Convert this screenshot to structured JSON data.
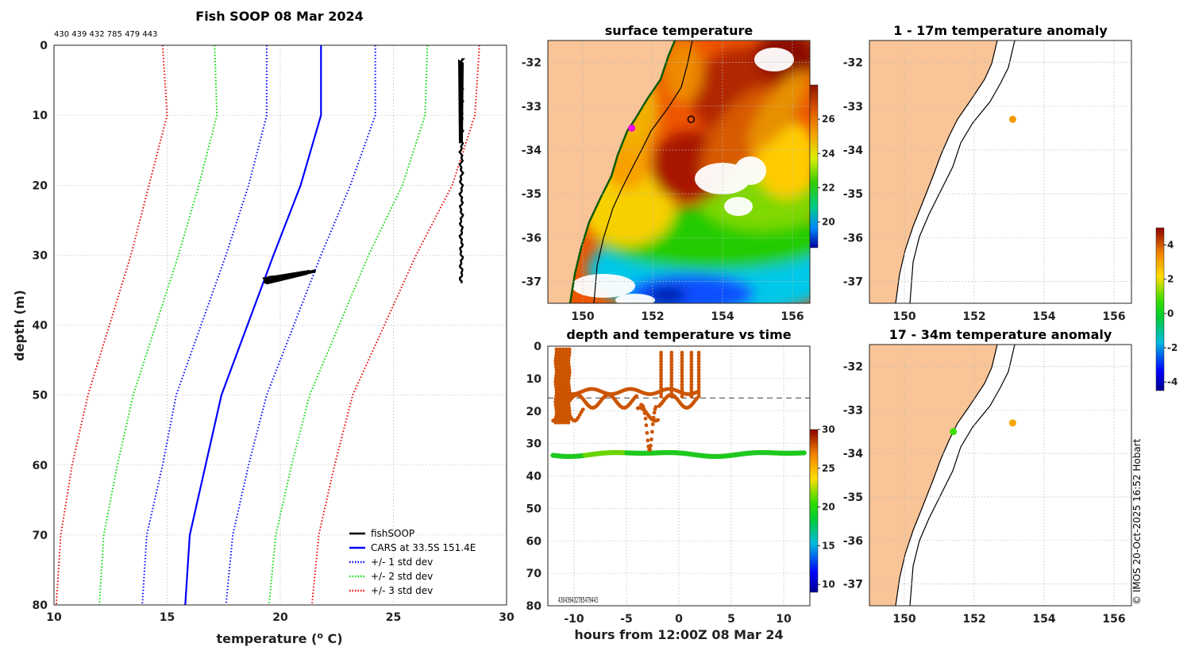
{
  "chart_data": [
    {
      "type": "line",
      "title": "Fish SOOP 08 Mar 2024",
      "subtitle": "430 439 432 785 479 443",
      "xlabel": "temperature (",
      "xlabel_sup": "o",
      "xlabel_suffix": " C)",
      "ylabel": "depth (m)",
      "xlim": [
        10,
        30
      ],
      "ylim": [
        0,
        80
      ],
      "x_ticks": [
        "10",
        "15",
        "20",
        "25",
        "30"
      ],
      "y_ticks": [
        "0",
        "10",
        "20",
        "30",
        "40",
        "50",
        "60",
        "70",
        "80"
      ],
      "depth": [
        0,
        10,
        20,
        30,
        50,
        60,
        70,
        80
      ],
      "series": [
        {
          "name": "CARS at 33.5S 151.4E",
          "color": "#0000ff",
          "style": "solid",
          "values": [
            21.8,
            21.8,
            20.9,
            19.7,
            17.4,
            16.7,
            16.0,
            15.8
          ]
        },
        {
          "name": "+1 std dev",
          "color": "#0000ff",
          "style": "dotted",
          "values": [
            24.2,
            24.2,
            23.1,
            21.8,
            19.4,
            18.6,
            17.9,
            17.6
          ]
        },
        {
          "name": "-1 std dev",
          "color": "#0000ff",
          "style": "dotted",
          "values": [
            19.4,
            19.4,
            18.6,
            17.6,
            15.4,
            14.8,
            14.1,
            13.9
          ]
        },
        {
          "name": "+2 std dev",
          "color": "#00dd00",
          "style": "dotted",
          "values": [
            26.5,
            26.4,
            25.4,
            23.9,
            21.3,
            20.5,
            19.8,
            19.5
          ]
        },
        {
          "name": "-2 std dev",
          "color": "#00dd00",
          "style": "dotted",
          "values": [
            17.1,
            17.2,
            16.4,
            15.5,
            13.5,
            12.8,
            12.2,
            12.0
          ]
        },
        {
          "name": "+3 std dev",
          "color": "#ee0000",
          "style": "dotted",
          "values": [
            28.8,
            28.6,
            27.6,
            26.0,
            23.2,
            22.4,
            21.7,
            21.4
          ]
        },
        {
          "name": "-3 std dev",
          "color": "#ee0000",
          "style": "dotted",
          "values": [
            14.8,
            15.0,
            14.2,
            13.4,
            11.5,
            10.8,
            10.3,
            10.1
          ]
        }
      ],
      "fishsoop_surface_temp": 28.0,
      "fishsoop_depth_range": [
        2,
        34
      ],
      "fishsoop_deep_points": [
        [
          19.3,
          34.0
        ],
        [
          19.5,
          33.2
        ],
        [
          20.2,
          33.0
        ],
        [
          21.0,
          32.6
        ],
        [
          21.5,
          32.3
        ],
        [
          19.8,
          33.5
        ],
        [
          20.6,
          32.8
        ]
      ],
      "legend": [
        "fishSOOP",
        "CARS at 33.5S 151.4E",
        "+/- 1 std dev",
        "+/- 2 std dev",
        "+/- 3 std dev"
      ],
      "legend_colors": [
        "#000000",
        "#0000ff",
        "#0000ff",
        "#00dd00",
        "#ee0000"
      ],
      "legend_position": "bottom-right"
    },
    {
      "type": "heatmap",
      "title": "surface temperature",
      "xlim": [
        149,
        156.5
      ],
      "ylim": [
        -37.5,
        -31.5
      ],
      "x_ticks": [
        "150",
        "152",
        "154",
        "156"
      ],
      "y_ticks": [
        "-32",
        "-33",
        "-34",
        "-35",
        "-36",
        "-37"
      ],
      "colorbar_ticks": [
        "26",
        "24",
        "22",
        "20"
      ],
      "colorbar_range": [
        18.5,
        28
      ],
      "marker_location": [
        151.4,
        -33.5
      ],
      "circle_location": [
        153.1,
        -33.3
      ]
    },
    {
      "type": "scatter",
      "title": "depth and temperature vs time",
      "xlabel": "hours from 12:00Z 08 Mar 24",
      "xlim": [
        -12.5,
        12.5
      ],
      "ylim": [
        0,
        80
      ],
      "x_ticks": [
        "-10",
        "-5",
        "0",
        "5",
        "10"
      ],
      "y_ticks": [
        "0",
        "10",
        "20",
        "30",
        "40",
        "50",
        "60",
        "70",
        "80"
      ],
      "colorbar_ticks": [
        "30",
        "25",
        "20",
        "15",
        "10"
      ],
      "colorbar_range": [
        9,
        30
      ],
      "reference_depth": 16,
      "overlapping_ids": "430439432785479443",
      "shallow_track_temp": 28,
      "deep_track_temp": 21
    },
    {
      "type": "scatter",
      "title": "1 - 17m temperature anomaly",
      "xlim": [
        149,
        156.5
      ],
      "ylim": [
        -37.5,
        -31.5
      ],
      "x_ticks": [
        "150",
        "152",
        "154",
        "156"
      ],
      "y_ticks": [
        "-32",
        "-33",
        "-34",
        "-35",
        "-36",
        "-37"
      ],
      "points": [
        {
          "lon": 153.1,
          "lat": -33.3,
          "anomaly": 3.2
        }
      ]
    },
    {
      "type": "scatter",
      "title": "17 - 34m temperature anomaly",
      "xlim": [
        149,
        156.5
      ],
      "ylim": [
        -37.5,
        -31.5
      ],
      "x_ticks": [
        "150",
        "152",
        "154",
        "156"
      ],
      "y_ticks": [
        "-32",
        "-33",
        "-34",
        "-35",
        "-36",
        "-37"
      ],
      "points": [
        {
          "lon": 153.1,
          "lat": -33.3,
          "anomaly": 3.0
        },
        {
          "lon": 151.4,
          "lat": -33.5,
          "anomaly": 0.8
        }
      ]
    }
  ],
  "anomaly_colorbar": {
    "ticks": [
      "4",
      "2",
      "0",
      "-2",
      "-4"
    ],
    "range": [
      -4.5,
      5
    ]
  },
  "credit": "© IMOS 20-Oct-2025 16:52 Hobart"
}
